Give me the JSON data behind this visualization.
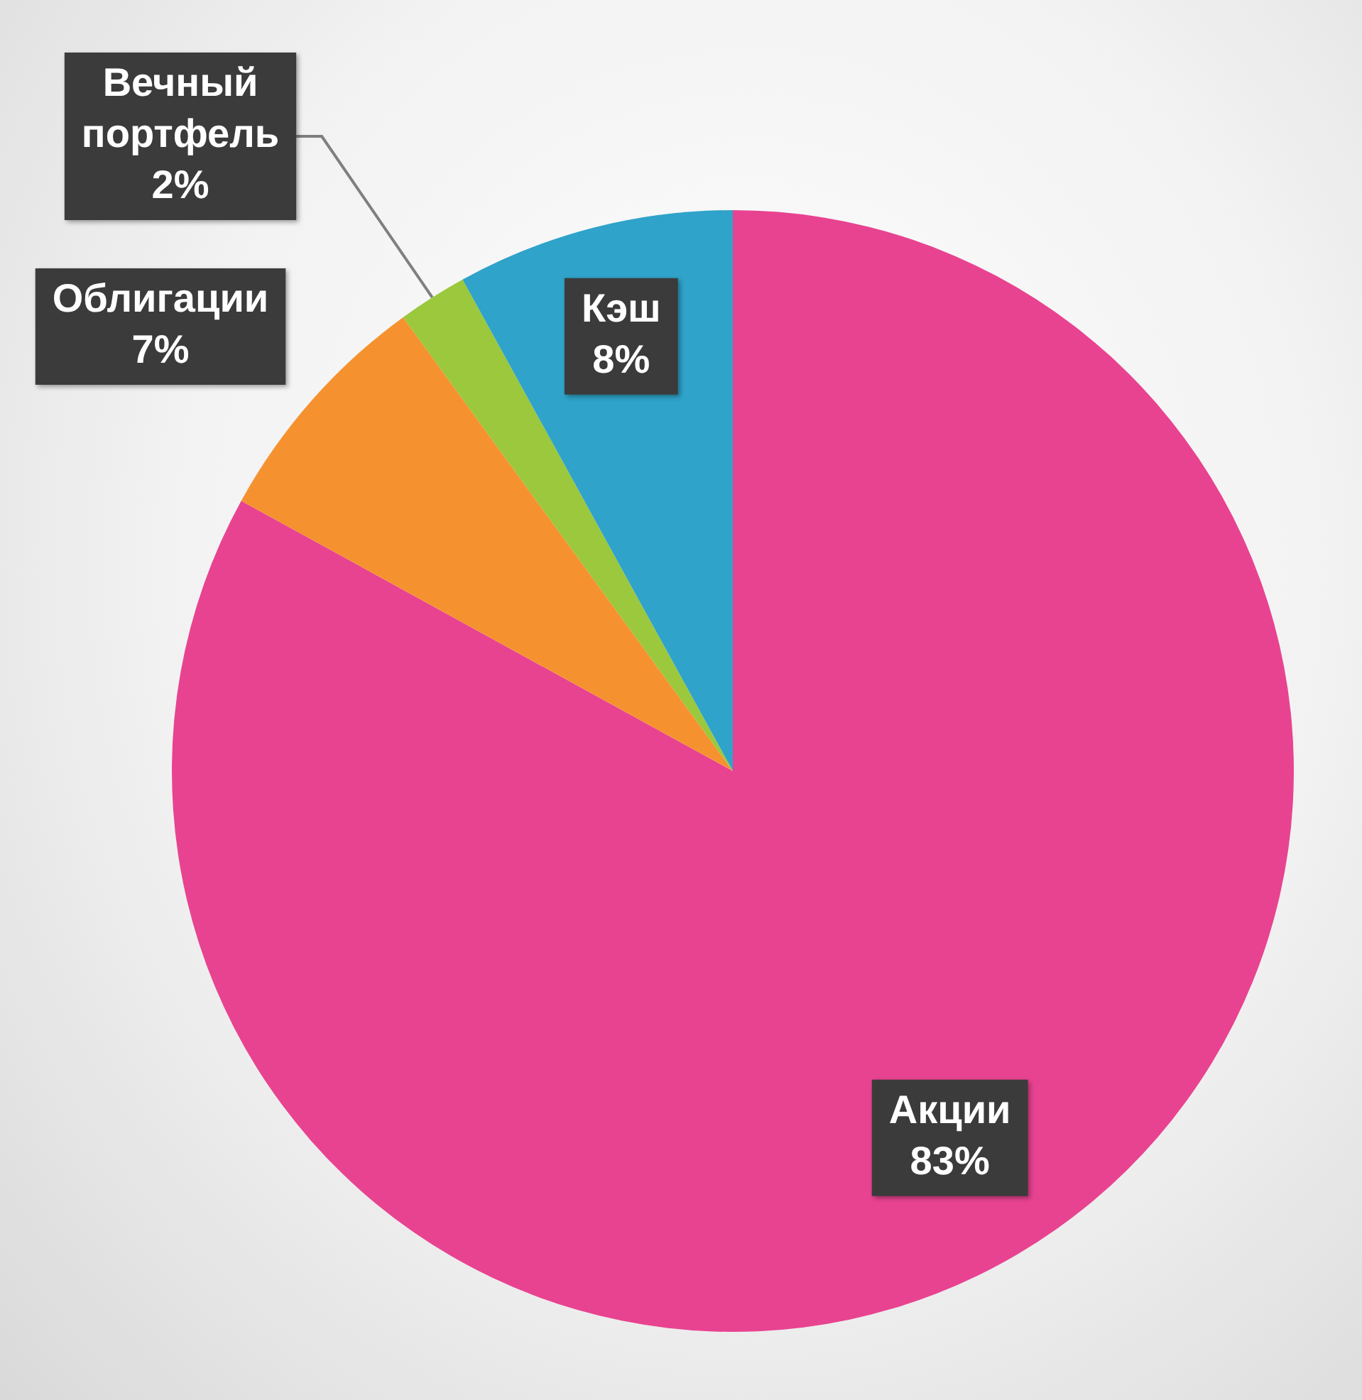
{
  "chart_data": {
    "type": "pie",
    "categories": [
      "Акции",
      "Облигации",
      "Вечный портфель",
      "Кэш"
    ],
    "values": [
      83,
      7,
      2,
      8
    ],
    "colors": [
      "#e84390",
      "#f5922f",
      "#9bc83c",
      "#2fa3c9"
    ],
    "value_labels": [
      "83%",
      "7%",
      "2%",
      "8%"
    ],
    "legend": false
  }
}
